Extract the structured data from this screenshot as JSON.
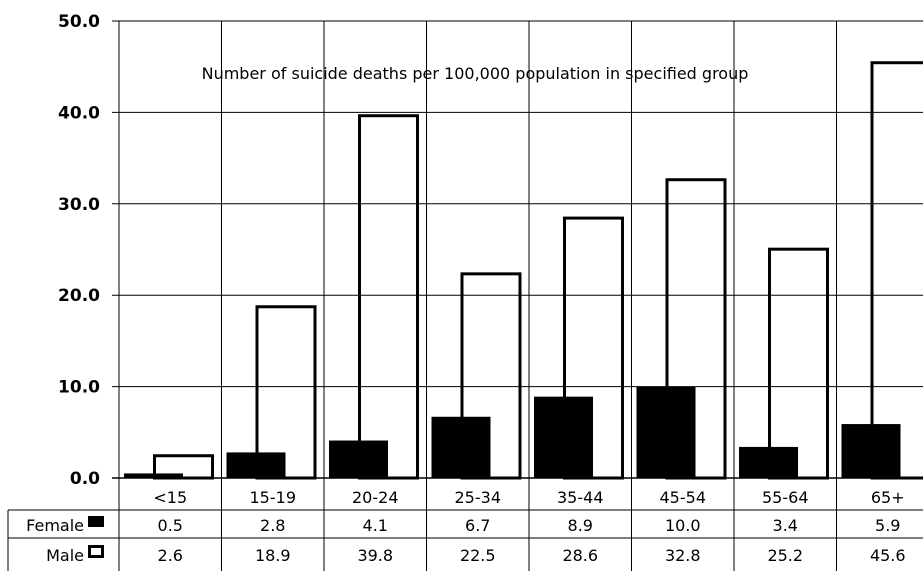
{
  "chart_data": {
    "type": "bar",
    "title": "",
    "annotation": "Number of suicide deaths per 100,000 population in specified group",
    "xlabel": "",
    "ylabel": "",
    "ylim": [
      0,
      50
    ],
    "yticks": [
      "0.0",
      "10.0",
      "20.0",
      "30.0",
      "40.0",
      "50.0"
    ],
    "grid": true,
    "categories": [
      "<15",
      "15-19",
      "20-24",
      "25-34",
      "35-44",
      "45-54",
      "55-64",
      "65+"
    ],
    "series": [
      {
        "name": "Female",
        "color": "#000000",
        "fill": "solid",
        "values": [
          0.5,
          2.8,
          4.1,
          6.7,
          8.9,
          10.0,
          3.4,
          5.9
        ],
        "labels": [
          "0.5",
          "2.8",
          "4.1",
          "6.7",
          "8.9",
          "10.0",
          "3.4",
          "5.9"
        ]
      },
      {
        "name": "Male",
        "color": "#000000",
        "fill": "hollow",
        "values": [
          2.6,
          18.9,
          39.8,
          22.5,
          28.6,
          32.8,
          25.2,
          45.6
        ],
        "labels": [
          "2.6",
          "18.9",
          "39.8",
          "22.5",
          "28.6",
          "32.8",
          "25.2",
          "45.6"
        ]
      }
    ],
    "legend_placement": "data-table-left"
  }
}
